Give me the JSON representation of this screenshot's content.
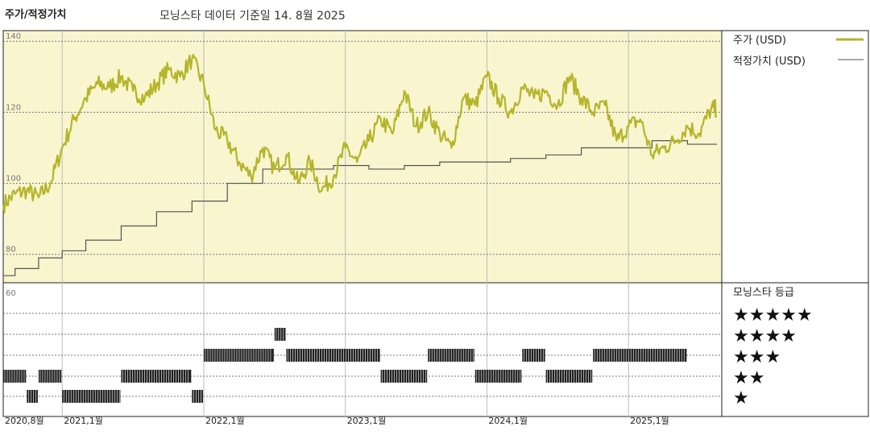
{
  "header": {
    "title": "주가/적정가치",
    "subtitle": "모닝스타 데이터 기준일 14. 8월 2025"
  },
  "legend": {
    "price_label": "주가 (USD)",
    "fair_value_label": "적정가치 (USD)",
    "rating_title": "모닝스타 등급"
  },
  "colors": {
    "price": "#b5b52a",
    "fair_value": "#555555",
    "background_top": "#f8f5cf",
    "rating_bars": "#222222"
  },
  "chart_data": [
    {
      "type": "line",
      "title": "주가/적정가치",
      "ylim": [
        72,
        143
      ],
      "y_ticks": [
        80,
        100,
        120,
        140
      ],
      "x_ticks": [
        "2020,8월",
        "2021,1월",
        "2022,1월",
        "2023,1월",
        "2024,1월",
        "2025,1월"
      ],
      "grid": true,
      "legend_position": "right",
      "series": [
        {
          "name": "주가 (USD)",
          "x": [
            "2020-08",
            "2020-09",
            "2020-10",
            "2020-11",
            "2020-12",
            "2021-01",
            "2021-02",
            "2021-03",
            "2021-04",
            "2021-05",
            "2021-06",
            "2021-07",
            "2021-08",
            "2021-09",
            "2021-10",
            "2021-11",
            "2021-12",
            "2022-01",
            "2022-02",
            "2022-03",
            "2022-04",
            "2022-05",
            "2022-06",
            "2022-07",
            "2022-08",
            "2022-09",
            "2022-10",
            "2022-11",
            "2022-12",
            "2023-01",
            "2023-02",
            "2023-03",
            "2023-04",
            "2023-05",
            "2023-06",
            "2023-07",
            "2023-08",
            "2023-09",
            "2023-10",
            "2023-11",
            "2023-12",
            "2024-01",
            "2024-02",
            "2024-03",
            "2024-04",
            "2024-05",
            "2024-06",
            "2024-07",
            "2024-08",
            "2024-09",
            "2024-10",
            "2024-11",
            "2024-12",
            "2025-01",
            "2025-02",
            "2025-03",
            "2025-04",
            "2025-05",
            "2025-06",
            "2025-07",
            "2025-08"
          ],
          "values": [
            94,
            97,
            98,
            96,
            100,
            110,
            118,
            124,
            128,
            127,
            130,
            126,
            124,
            128,
            132,
            130,
            135,
            128,
            115,
            112,
            106,
            102,
            110,
            104,
            108,
            100,
            106,
            98,
            102,
            110,
            106,
            112,
            118,
            114,
            126,
            116,
            120,
            114,
            110,
            124,
            122,
            130,
            124,
            120,
            127,
            124,
            126,
            122,
            130,
            124,
            120,
            122,
            112,
            116,
            118,
            108,
            110,
            112,
            116,
            114,
            121
          ]
        },
        {
          "name": "적정가치 (USD)",
          "x": [
            "2020-08",
            "2020-09",
            "2020-11",
            "2021-01",
            "2021-03",
            "2021-06",
            "2021-09",
            "2021-12",
            "2022-03",
            "2022-06",
            "2022-09",
            "2022-12",
            "2023-03",
            "2023-06",
            "2023-09",
            "2023-12",
            "2024-03",
            "2024-06",
            "2024-09",
            "2024-12",
            "2025-03",
            "2025-06",
            "2025-08"
          ],
          "values": [
            74,
            76,
            79,
            81,
            84,
            88,
            92,
            95,
            100,
            104,
            104,
            105,
            104,
            105,
            106,
            106,
            107,
            108,
            110,
            110,
            112,
            111,
            111
          ]
        }
      ]
    },
    {
      "type": "table",
      "title": "모닝스타 등급",
      "y_categories": [
        "★★★★★",
        "★★★★",
        "★★★",
        "★★",
        "★"
      ],
      "ratings": [
        {
          "start": "2020-08",
          "end": "2020-10",
          "stars": 2
        },
        {
          "start": "2020-10",
          "end": "2020-11",
          "stars": 1
        },
        {
          "start": "2020-11",
          "end": "2021-01",
          "stars": 2
        },
        {
          "start": "2021-01",
          "end": "2021-06",
          "stars": 1
        },
        {
          "start": "2021-06",
          "end": "2021-12",
          "stars": 2
        },
        {
          "start": "2021-12",
          "end": "2022-01",
          "stars": 1
        },
        {
          "start": "2022-01",
          "end": "2022-07",
          "stars": 3
        },
        {
          "start": "2022-07",
          "end": "2022-08",
          "stars": 4
        },
        {
          "start": "2022-08",
          "end": "2023-04",
          "stars": 3
        },
        {
          "start": "2023-04",
          "end": "2023-08",
          "stars": 2
        },
        {
          "start": "2023-08",
          "end": "2023-12",
          "stars": 3
        },
        {
          "start": "2023-12",
          "end": "2024-04",
          "stars": 2
        },
        {
          "start": "2024-04",
          "end": "2024-06",
          "stars": 3
        },
        {
          "start": "2024-06",
          "end": "2024-10",
          "stars": 2
        },
        {
          "start": "2024-10",
          "end": "2025-06",
          "stars": 3
        }
      ]
    }
  ]
}
